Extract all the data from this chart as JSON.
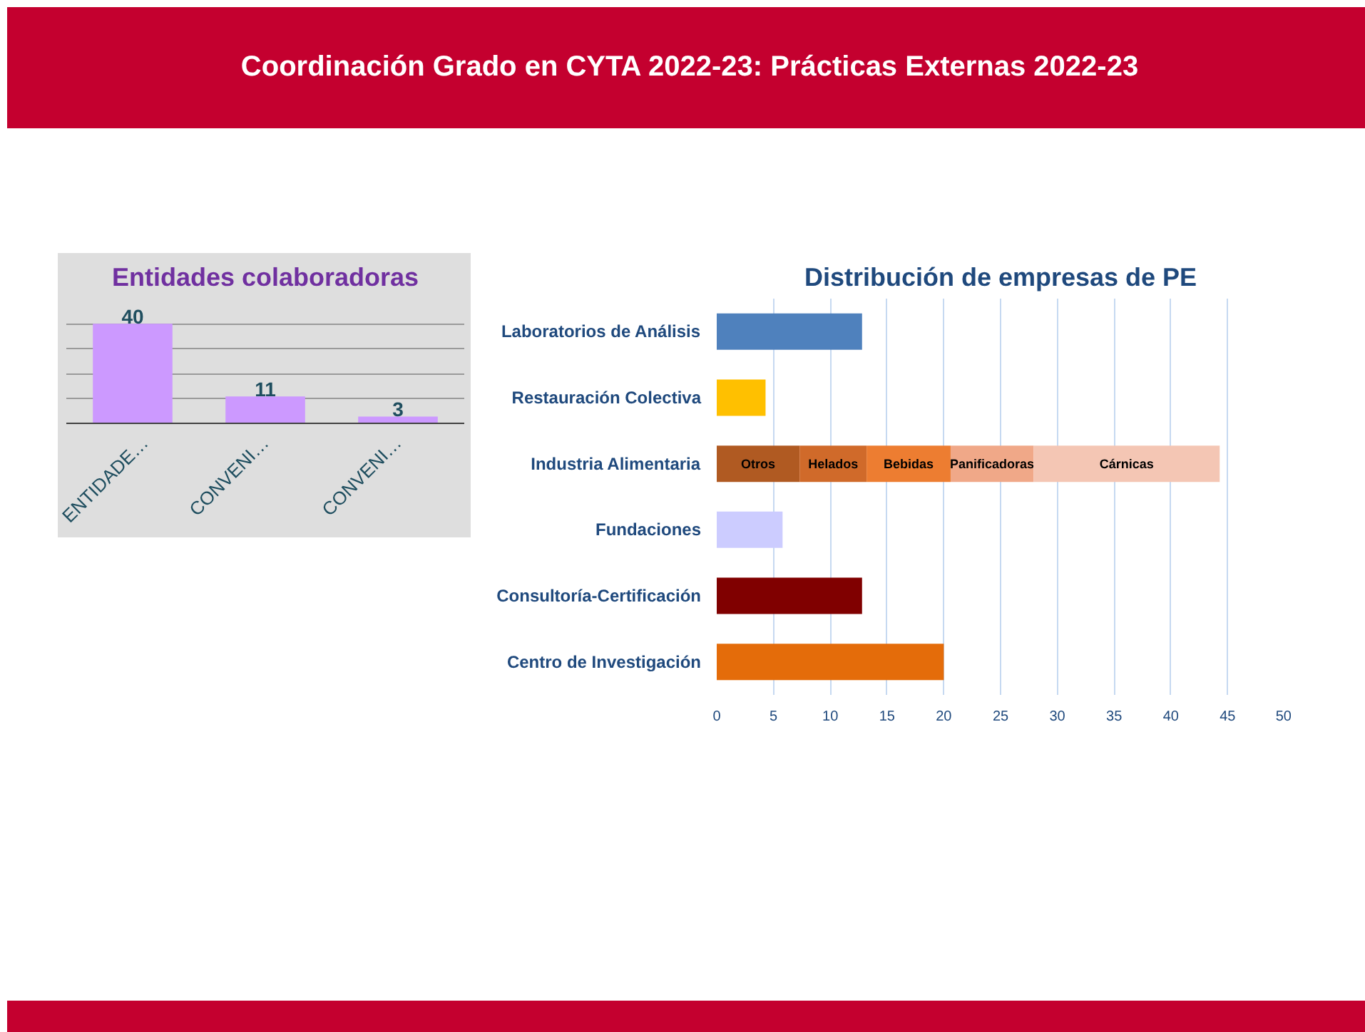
{
  "chart_data": [
    {
      "type": "bar",
      "title": "Entidades colaboradoras",
      "annotations": [
        "Coordinación Grado en CYTA 2022-23: Prácticas Externas 2022-23"
      ],
      "categories": [
        "ENTIDADE…",
        "CONVENI…",
        "CONVENI…"
      ],
      "values": [
        40,
        11,
        3
      ],
      "color": "#cc99ff",
      "data_labels": true,
      "ylim": [
        0,
        50
      ],
      "yticks": [
        0,
        10,
        20,
        30,
        40,
        50
      ],
      "grid": "y",
      "tick_labels": "x"
    },
    {
      "type": "bar",
      "title": "Distribución de empresas de PE",
      "orientation": "horizontal",
      "stacked": true,
      "categories": [
        "Laboratorios de Análisis",
        "Restauración Colectiva",
        "Industria Alimentaria",
        "Fundaciones",
        "Consultoría-Certificación",
        "Centro de Investigación"
      ],
      "xlim": [
        0,
        50
      ],
      "xticks": [
        0,
        5,
        10,
        15,
        20,
        25,
        30,
        35,
        40,
        45,
        50
      ],
      "grid": "x",
      "series": [
        {
          "colors": [
            "#4f81bd",
            "#ffc000",
            null,
            "#ccccff",
            "#800000",
            "#e46c0a"
          ],
          "values": [
            12.8,
            4.3,
            null,
            5.8,
            12.8,
            20.0
          ]
        },
        {
          "name": "Otros",
          "color": "#b05a22",
          "values": [
            null,
            null,
            7.3,
            null,
            null,
            null
          ]
        },
        {
          "name": "Helados",
          "color": "#d06a2a",
          "values": [
            null,
            null,
            5.9,
            null,
            null,
            null
          ]
        },
        {
          "name": "Bebidas",
          "color": "#ed7d31",
          "values": [
            null,
            null,
            7.4,
            null,
            null,
            null
          ]
        },
        {
          "name": "Panificadoras",
          "color": "#f0a888",
          "values": [
            null,
            null,
            7.3,
            null,
            null,
            null
          ]
        },
        {
          "name": "Cárnicas",
          "color": "#f4c6b4",
          "values": [
            null,
            null,
            16.4,
            null,
            null,
            null
          ]
        }
      ]
    }
  ]
}
